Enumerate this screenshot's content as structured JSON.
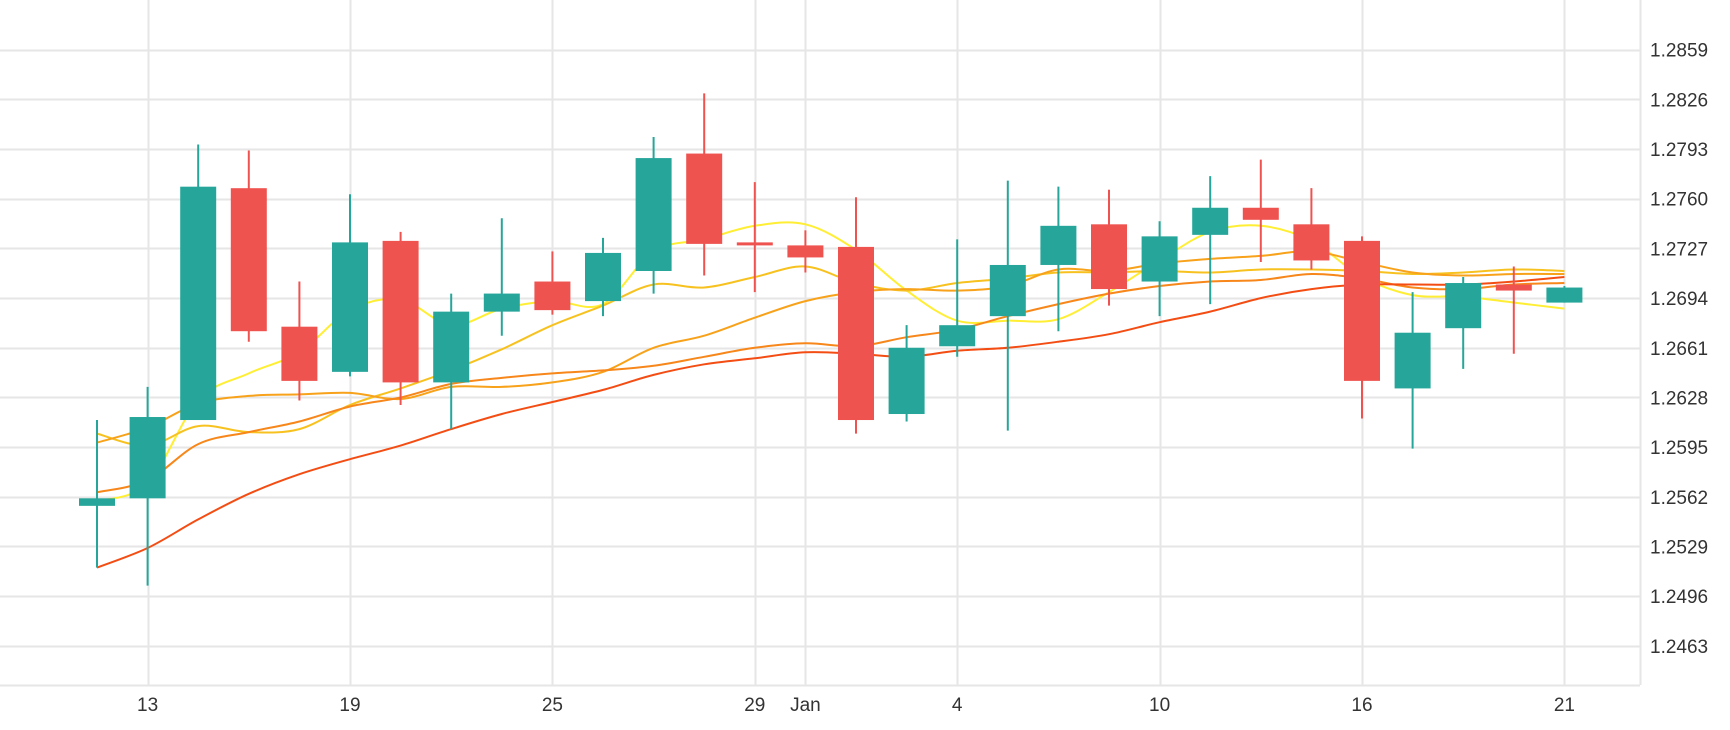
{
  "chart_data": {
    "type": "candlestick",
    "title": "",
    "xlabel": "",
    "ylabel": "",
    "grid": true,
    "legend": "none",
    "y_ticks": [
      1.2463,
      1.2496,
      1.2529,
      1.2562,
      1.2595,
      1.2628,
      1.2661,
      1.2694,
      1.2727,
      1.276,
      1.2793,
      1.2826,
      1.2859
    ],
    "y_tick_labels": [
      "1.2463",
      "1.2496",
      "1.2529",
      "1.2562",
      "1.2595",
      "1.2628",
      "1.2661",
      "1.2694",
      "1.2727",
      "1.2760",
      "1.2793",
      "1.2826",
      "1.2859"
    ],
    "ylim": [
      1.2437,
      1.2892
    ],
    "x_ticks": [
      {
        "index": 1,
        "label": "13"
      },
      {
        "index": 5,
        "label": "19"
      },
      {
        "index": 9,
        "label": "25"
      },
      {
        "index": 13,
        "label": "29"
      },
      {
        "index": 14,
        "label": "Jan"
      },
      {
        "index": 17,
        "label": "4"
      },
      {
        "index": 21,
        "label": "10"
      },
      {
        "index": 25,
        "label": "16"
      },
      {
        "index": 29,
        "label": "21"
      }
    ],
    "candles": [
      {
        "o": 1.2556,
        "h": 1.2613,
        "l": 1.2515,
        "c": 1.2561
      },
      {
        "o": 1.2561,
        "h": 1.2635,
        "l": 1.2503,
        "c": 1.2615
      },
      {
        "o": 1.2613,
        "h": 1.2796,
        "l": 1.2613,
        "c": 1.2768
      },
      {
        "o": 1.2767,
        "h": 1.2792,
        "l": 1.2665,
        "c": 1.2672
      },
      {
        "o": 1.2675,
        "h": 1.2705,
        "l": 1.2626,
        "c": 1.2639
      },
      {
        "o": 1.2645,
        "h": 1.2763,
        "l": 1.2642,
        "c": 1.2731
      },
      {
        "o": 1.2732,
        "h": 1.2738,
        "l": 1.2623,
        "c": 1.2638
      },
      {
        "o": 1.2638,
        "h": 1.2697,
        "l": 1.2607,
        "c": 1.2685
      },
      {
        "o": 1.2685,
        "h": 1.2747,
        "l": 1.2669,
        "c": 1.2697
      },
      {
        "o": 1.2705,
        "h": 1.2725,
        "l": 1.2683,
        "c": 1.2686
      },
      {
        "o": 1.2692,
        "h": 1.2734,
        "l": 1.2682,
        "c": 1.2724
      },
      {
        "o": 1.2712,
        "h": 1.2801,
        "l": 1.2697,
        "c": 1.2787
      },
      {
        "o": 1.279,
        "h": 1.283,
        "l": 1.2709,
        "c": 1.273
      },
      {
        "o": 1.2731,
        "h": 1.2771,
        "l": 1.2698,
        "c": 1.2729
      },
      {
        "o": 1.2729,
        "h": 1.2739,
        "l": 1.2711,
        "c": 1.2721
      },
      {
        "o": 1.2728,
        "h": 1.2761,
        "l": 1.2604,
        "c": 1.2613
      },
      {
        "o": 1.2617,
        "h": 1.2676,
        "l": 1.2612,
        "c": 1.2661
      },
      {
        "o": 1.2662,
        "h": 1.2733,
        "l": 1.2655,
        "c": 1.2676
      },
      {
        "o": 1.2682,
        "h": 1.2772,
        "l": 1.2606,
        "c": 1.2716
      },
      {
        "o": 1.2716,
        "h": 1.2768,
        "l": 1.2672,
        "c": 1.2742
      },
      {
        "o": 1.2743,
        "h": 1.2766,
        "l": 1.2689,
        "c": 1.27
      },
      {
        "o": 1.2705,
        "h": 1.2745,
        "l": 1.2682,
        "c": 1.2735
      },
      {
        "o": 1.2736,
        "h": 1.2775,
        "l": 1.269,
        "c": 1.2754
      },
      {
        "o": 1.2754,
        "h": 1.2786,
        "l": 1.2718,
        "c": 1.2746
      },
      {
        "o": 1.2743,
        "h": 1.2767,
        "l": 1.2713,
        "c": 1.2719
      },
      {
        "o": 1.2732,
        "h": 1.2735,
        "l": 1.2614,
        "c": 1.2639
      },
      {
        "o": 1.2634,
        "h": 1.2698,
        "l": 1.2594,
        "c": 1.2671
      },
      {
        "o": 1.2674,
        "h": 1.2708,
        "l": 1.2647,
        "c": 1.2704
      },
      {
        "o": 1.2703,
        "h": 1.2715,
        "l": 1.2657,
        "c": 1.2699
      },
      {
        "o": 1.2691,
        "h": 1.2702,
        "l": 1.2691,
        "c": 1.2701
      }
    ],
    "series": [
      {
        "color": "#ffee33",
        "values": [
          1.2559,
          1.2571,
          1.2626,
          1.2644,
          1.2658,
          1.2686,
          1.2693,
          1.2676,
          1.2687,
          1.2692,
          1.269,
          1.2725,
          1.2733,
          1.2742,
          1.2743,
          1.2726,
          1.2699,
          1.2679,
          1.2679,
          1.268,
          1.2698,
          1.2719,
          1.2738,
          1.2742,
          1.2732,
          1.2708,
          1.2696,
          1.2695,
          1.2691,
          1.2687
        ]
      },
      {
        "color": "#f7c21f",
        "values": [
          1.2604,
          1.2596,
          1.2609,
          1.2605,
          1.2607,
          1.2623,
          1.2634,
          1.2646,
          1.266,
          1.2676,
          1.2689,
          1.2703,
          1.2701,
          1.2708,
          1.2715,
          1.2704,
          1.2699,
          1.2704,
          1.2707,
          1.2711,
          1.2711,
          1.2712,
          1.2711,
          1.2713,
          1.2713,
          1.2712,
          1.271,
          1.2711,
          1.2713,
          1.2712
        ]
      },
      {
        "color": "#f7a21a",
        "values": [
          1.2598,
          1.2608,
          1.2624,
          1.2629,
          1.263,
          1.2631,
          1.2627,
          1.2635,
          1.2635,
          1.2638,
          1.2645,
          1.2661,
          1.2669,
          1.2681,
          1.2692,
          1.2698,
          1.27,
          1.2699,
          1.2702,
          1.2713,
          1.2712,
          1.2717,
          1.272,
          1.2722,
          1.2725,
          1.2718,
          1.2711,
          1.2709,
          1.271,
          1.271
        ]
      },
      {
        "color": "#f7871a",
        "values": [
          1.2565,
          1.2573,
          1.2597,
          1.2605,
          1.2612,
          1.2622,
          1.2628,
          1.2637,
          1.2641,
          1.2644,
          1.2646,
          1.2649,
          1.2655,
          1.2661,
          1.2664,
          1.2662,
          1.2668,
          1.2673,
          1.2682,
          1.269,
          1.2697,
          1.2702,
          1.2705,
          1.2706,
          1.271,
          1.2707,
          1.2701,
          1.27,
          1.2703,
          1.2704
        ]
      },
      {
        "color": "#f44d14",
        "values": [
          1.2515,
          1.2528,
          1.2547,
          1.2564,
          1.2577,
          1.2587,
          1.2596,
          1.2607,
          1.2617,
          1.2625,
          1.2633,
          1.2643,
          1.265,
          1.2654,
          1.2658,
          1.2657,
          1.2655,
          1.2659,
          1.2661,
          1.2665,
          1.267,
          1.2678,
          1.2685,
          1.2694,
          1.27,
          1.2703,
          1.2703,
          1.2703,
          1.2705,
          1.2708
        ]
      }
    ],
    "colors": {
      "up": "#26a69a",
      "down": "#ef5350",
      "grid": "#e6e6e6",
      "label": "#333333"
    }
  }
}
